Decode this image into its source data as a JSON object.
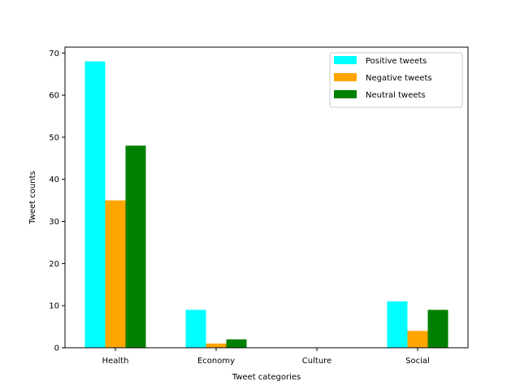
{
  "chart_data": {
    "type": "bar",
    "categories": [
      "Health",
      "Economy",
      "Culture",
      "Social"
    ],
    "series": [
      {
        "name": "Positive tweets",
        "values": [
          68,
          9,
          0,
          11
        ],
        "color": "#00ffff"
      },
      {
        "name": "Negative tweets",
        "values": [
          35,
          1,
          0,
          4
        ],
        "color": "#ffa500"
      },
      {
        "name": "Neutral tweets",
        "values": [
          48,
          2,
          0,
          9
        ],
        "color": "#008000"
      }
    ],
    "xlabel": "Tweet categories",
    "ylabel": "Tweet counts",
    "ylim": [
      0,
      71.4
    ],
    "yticks": [
      0,
      10,
      20,
      30,
      40,
      50,
      60,
      70
    ],
    "legend_position": "top-right",
    "grid": false
  }
}
